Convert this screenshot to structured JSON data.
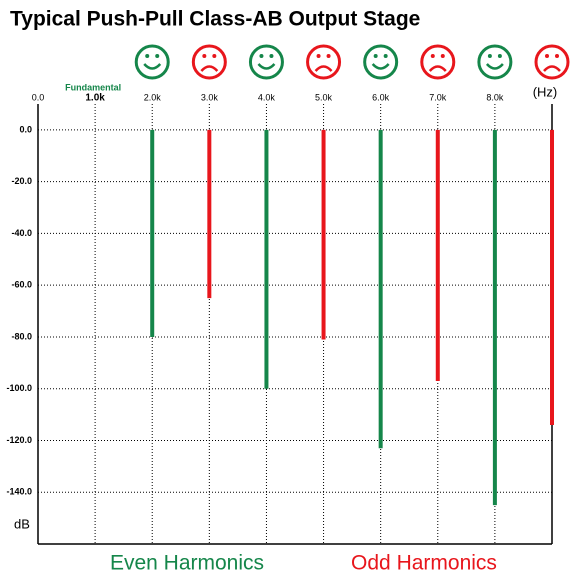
{
  "chart_data": {
    "type": "spectrum",
    "title": "Typical Push-Pull Class-AB Output Stage",
    "x_label": "(Hz)",
    "y_label": "dB",
    "annotation": {
      "text": "Fundamental",
      "x": 1000
    },
    "xlim": [
      0,
      9000
    ],
    "xticks": [
      {
        "value": 0,
        "label": "0.0"
      },
      {
        "value": 1000,
        "label": "1.0k"
      },
      {
        "value": 2000,
        "label": "2.0k"
      },
      {
        "value": 3000,
        "label": "3.0k"
      },
      {
        "value": 4000,
        "label": "4.0k"
      },
      {
        "value": 5000,
        "label": "5.0k"
      },
      {
        "value": 6000,
        "label": "6.0k"
      },
      {
        "value": 7000,
        "label": "7.0k"
      },
      {
        "value": 8000,
        "label": "8.0k"
      }
    ],
    "ylim": [
      -160,
      10
    ],
    "yticks": [
      {
        "value": 0,
        "label": "0.0"
      },
      {
        "value": -20,
        "label": "-20.0"
      },
      {
        "value": -40,
        "label": "-40.0"
      },
      {
        "value": -60,
        "label": "-60.0"
      },
      {
        "value": -80,
        "label": "-80.0"
      },
      {
        "value": -100,
        "label": "-100.0"
      },
      {
        "value": -120,
        "label": "-120.0"
      },
      {
        "value": -140,
        "label": "-140.0"
      }
    ],
    "grid": true,
    "series": [
      {
        "name": "Even Harmonics",
        "color": "#15864a",
        "mood": "happy",
        "x": [
          2000,
          4000,
          6000,
          8000
        ],
        "values": [
          -80,
          -100,
          -123,
          -145
        ]
      },
      {
        "name": "Odd Harmonics",
        "color": "#e8161c",
        "mood": "sad",
        "x": [
          3000,
          5000,
          7000,
          9000
        ],
        "values": [
          -65,
          -81,
          -97,
          -114
        ]
      }
    ]
  }
}
